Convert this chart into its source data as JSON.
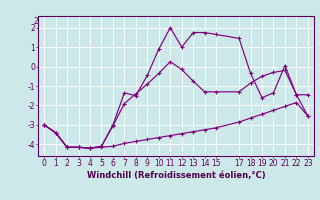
{
  "title": "",
  "xlabel": "Windchill (Refroidissement éolien,°C)",
  "ylabel": "",
  "background_color": "#cce8e8",
  "line_color": "#800080",
  "grid_color": "#ffffff",
  "xlim": [
    -0.5,
    23.5
  ],
  "ylim": [
    -4.6,
    2.6
  ],
  "xticks": [
    0,
    1,
    2,
    3,
    4,
    5,
    6,
    7,
    8,
    9,
    10,
    11,
    12,
    13,
    14,
    15,
    17,
    18,
    19,
    20,
    21,
    22,
    23
  ],
  "yticks": [
    -4,
    -3,
    -2,
    -1,
    0,
    1,
    2
  ],
  "series1_x": [
    0,
    1,
    2,
    3,
    4,
    5,
    6,
    7,
    8,
    9,
    10,
    11,
    12,
    13,
    14,
    15,
    17,
    18,
    19,
    20,
    21,
    22,
    23
  ],
  "series1_y": [
    -3.0,
    -3.4,
    -4.15,
    -4.15,
    -4.2,
    -4.15,
    -4.1,
    -3.95,
    -3.85,
    -3.75,
    -3.65,
    -3.55,
    -3.45,
    -3.35,
    -3.25,
    -3.15,
    -2.85,
    -2.65,
    -2.45,
    -2.25,
    -2.05,
    -1.85,
    -2.55
  ],
  "series2_x": [
    0,
    1,
    2,
    3,
    4,
    5,
    6,
    7,
    8,
    9,
    10,
    11,
    12,
    13,
    14,
    15,
    17,
    18,
    19,
    20,
    21,
    22,
    23
  ],
  "series2_y": [
    -3.0,
    -3.4,
    -4.15,
    -4.15,
    -4.2,
    -4.1,
    -3.0,
    -1.35,
    -1.5,
    -0.45,
    0.9,
    2.0,
    1.0,
    1.75,
    1.75,
    1.65,
    1.45,
    -0.35,
    -1.6,
    -1.35,
    0.05,
    -1.45,
    -1.45
  ],
  "series3_x": [
    0,
    1,
    2,
    3,
    4,
    5,
    6,
    7,
    8,
    9,
    10,
    11,
    12,
    13,
    14,
    15,
    17,
    18,
    19,
    20,
    21,
    22,
    23
  ],
  "series3_y": [
    -3.0,
    -3.4,
    -4.15,
    -4.15,
    -4.2,
    -4.1,
    -3.05,
    -1.9,
    -1.4,
    -0.9,
    -0.35,
    0.25,
    -0.15,
    -0.75,
    -1.3,
    -1.3,
    -1.3,
    -0.85,
    -0.5,
    -0.3,
    -0.2,
    -1.45,
    -2.55
  ],
  "figsize": [
    3.2,
    2.0
  ],
  "dpi": 100,
  "fontsize_xlabel": 6.0,
  "fontsize_ticks": 5.5,
  "marker": "+"
}
